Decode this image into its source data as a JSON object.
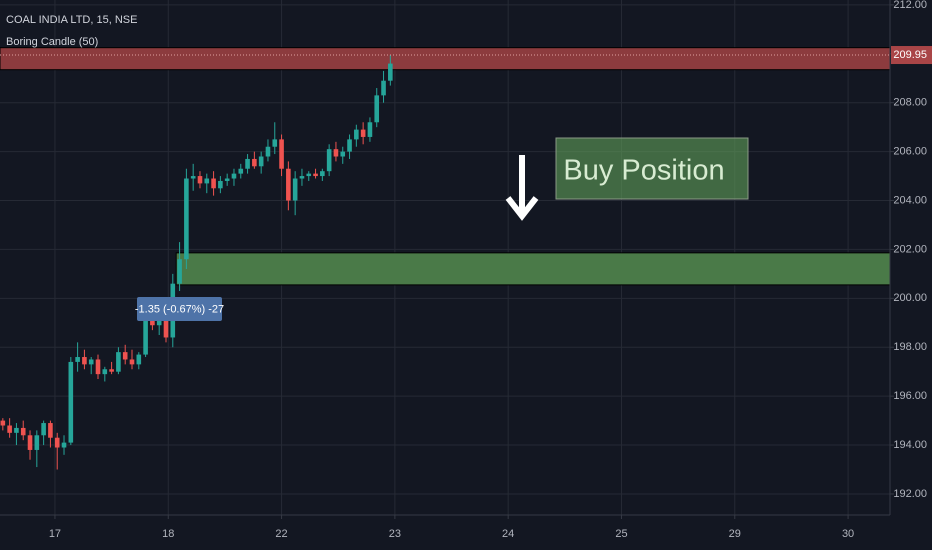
{
  "chart_data": {
    "type": "candlestick",
    "title": "COAL INDIA LTD, 15, NSE",
    "subtitle": "Boring Candle (50)",
    "up_color": "#26a69a",
    "down_color": "#ef5350",
    "x": [
      -0.46,
      -0.4,
      -0.34,
      -0.28,
      -0.22,
      -0.16,
      -0.1,
      -0.04,
      0.02,
      0.08,
      0.14,
      0.2,
      0.26,
      0.32,
      0.38,
      0.44,
      0.5,
      0.56,
      0.62,
      0.68,
      0.74,
      0.8,
      0.86,
      0.92,
      0.98,
      1.04,
      1.1,
      1.16,
      1.22,
      1.28,
      1.34,
      1.4,
      1.46,
      1.52,
      1.58,
      1.64,
      1.7,
      1.76,
      1.82,
      1.88,
      1.94,
      2.0,
      2.06,
      2.12,
      2.18,
      2.24,
      2.3,
      2.36,
      2.42,
      2.48,
      2.54,
      2.6,
      2.66,
      2.72,
      2.78,
      2.84,
      2.9,
      2.96
    ],
    "open": [
      195.0,
      194.8,
      194.5,
      194.7,
      194.4,
      193.8,
      194.4,
      194.9,
      194.3,
      193.9,
      194.1,
      197.4,
      197.6,
      197.3,
      197.5,
      196.9,
      197.1,
      197.0,
      197.8,
      197.5,
      197.3,
      197.7,
      199.1,
      198.9,
      199.2,
      198.4,
      200.6,
      201.6,
      204.9,
      205.0,
      204.7,
      204.9,
      204.5,
      204.8,
      204.9,
      205.1,
      205.3,
      205.7,
      205.4,
      205.8,
      206.2,
      206.5,
      205.3,
      204.0,
      204.9,
      205.0,
      205.1,
      205.0,
      205.2,
      206.1,
      205.8,
      206.0,
      206.5,
      206.9,
      206.6,
      207.2,
      208.3,
      208.9
    ],
    "high": [
      195.1,
      195.1,
      194.9,
      195.0,
      194.6,
      194.6,
      195.0,
      195.0,
      194.5,
      194.4,
      197.6,
      198.2,
      197.9,
      197.6,
      197.7,
      197.2,
      197.4,
      198.0,
      198.1,
      197.9,
      197.8,
      199.5,
      199.4,
      199.3,
      199.4,
      201.0,
      202.3,
      205.3,
      205.5,
      205.2,
      205.1,
      205.2,
      205.0,
      205.1,
      205.3,
      205.5,
      205.9,
      206.0,
      206.0,
      206.5,
      207.2,
      206.7,
      205.6,
      205.2,
      205.3,
      205.2,
      205.3,
      205.3,
      206.3,
      206.4,
      206.2,
      206.7,
      207.1,
      207.2,
      207.4,
      208.6,
      209.3,
      209.95
    ],
    "low": [
      194.6,
      194.3,
      194.0,
      194.2,
      193.4,
      193.1,
      194.0,
      193.9,
      193.0,
      193.6,
      194.0,
      197.0,
      197.1,
      196.9,
      196.7,
      196.6,
      196.9,
      196.9,
      197.3,
      197.1,
      197.1,
      197.6,
      198.7,
      198.5,
      198.2,
      198.0,
      200.3,
      201.2,
      204.4,
      204.5,
      204.3,
      204.2,
      204.3,
      204.6,
      204.6,
      204.9,
      205.1,
      205.3,
      205.1,
      205.6,
      205.9,
      205.0,
      203.6,
      203.4,
      204.6,
      204.8,
      204.9,
      204.8,
      205.0,
      205.6,
      205.5,
      205.7,
      206.2,
      206.3,
      206.4,
      207.0,
      208.0,
      208.7
    ],
    "close": [
      194.8,
      194.5,
      194.7,
      194.4,
      193.8,
      194.4,
      194.9,
      194.3,
      193.9,
      194.1,
      197.4,
      197.6,
      197.3,
      197.5,
      196.9,
      197.1,
      197.0,
      197.8,
      197.5,
      197.3,
      197.7,
      199.1,
      198.9,
      199.2,
      198.4,
      200.6,
      201.6,
      204.9,
      205.0,
      204.7,
      204.9,
      204.5,
      204.8,
      204.9,
      205.1,
      205.3,
      205.7,
      205.4,
      205.8,
      206.2,
      206.5,
      205.3,
      204.0,
      204.9,
      205.0,
      205.1,
      205.0,
      205.2,
      206.1,
      205.8,
      206.0,
      206.5,
      206.9,
      206.6,
      207.2,
      208.3,
      208.9,
      209.6
    ],
    "xlim": [
      -0.485,
      7.37
    ],
    "xticks": [
      {
        "value": 0,
        "label": "17"
      },
      {
        "value": 1,
        "label": "18"
      },
      {
        "value": 2,
        "label": "22"
      },
      {
        "value": 3,
        "label": "23"
      },
      {
        "value": 4,
        "label": "24"
      },
      {
        "value": 5,
        "label": "25"
      },
      {
        "value": 6,
        "label": "29"
      },
      {
        "value": 7,
        "label": "30"
      }
    ],
    "ylim": [
      191.14,
      212.2
    ],
    "yticks": [
      {
        "value": 192,
        "label": "192.00"
      },
      {
        "value": 194,
        "label": "194.00"
      },
      {
        "value": 196,
        "label": "196.00"
      },
      {
        "value": 198,
        "label": "198.00"
      },
      {
        "value": 200,
        "label": "200.00"
      },
      {
        "value": 202,
        "label": "202.00"
      },
      {
        "value": 204,
        "label": "204.00"
      },
      {
        "value": 206,
        "label": "206.00"
      },
      {
        "value": 208,
        "label": "208.00"
      },
      {
        "value": 210,
        "label": "210.00"
      },
      {
        "value": 212,
        "label": "212.00"
      }
    ],
    "grid": true,
    "zones": [
      {
        "low": 209.35,
        "high": 210.25,
        "color": "#8c3b3e"
      },
      {
        "low": 200.55,
        "high": 201.86,
        "start": 1.07,
        "color": "#4a7a48"
      }
    ],
    "last_price": 209.95,
    "last_price_color": "#a94547",
    "tooltip": "-1.35 (-0.67%) -27",
    "box_label": "Buy Position"
  }
}
